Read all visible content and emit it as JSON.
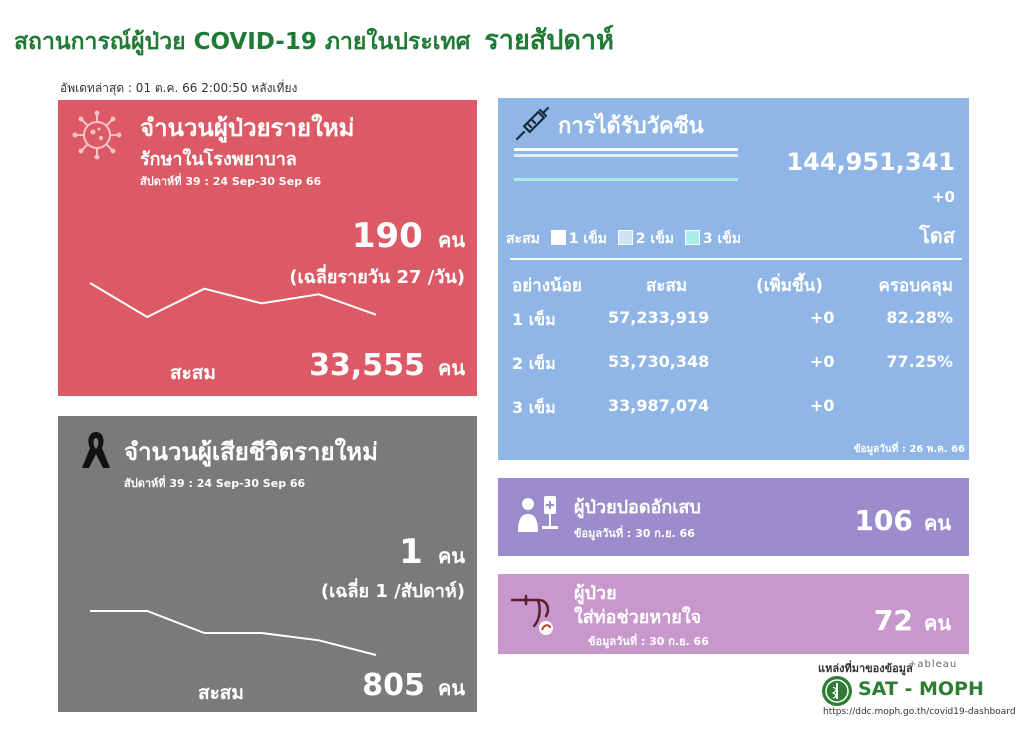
{
  "header": {
    "title": "สถานการณ์ผู้ป่วย COVID-19 ภายในประเทศ",
    "title_emphasis": "รายสัปดาห์",
    "updated": "อัพเดทล่าสุด : 01 ต.ค. 66 2:00:50 หลังเที่ยง"
  },
  "new_cases": {
    "title": "จำนวนผู้ป่วยรายใหม่",
    "subtitle": "รักษาในโรงพยาบาล",
    "week": "สัปดาห์ที่ 39 : 24 Sep-30 Sep 66",
    "value": "190",
    "unit": "คน",
    "avg": "(เฉลี่ยรายวัน 27 /วัน)",
    "cumulative_label": "สะสม",
    "cumulative_value": "33,555",
    "cumulative_unit": "คน",
    "trend": [
      5,
      2,
      4.5,
      3.2,
      4,
      2.2
    ],
    "line_color": "#ffffff"
  },
  "deaths": {
    "title": "จำนวนผู้เสียชีวิตรายใหม่",
    "week": "สัปดาห์ที่ 39 : 24 Sep-30 Sep 66",
    "value": "1",
    "unit": "คน",
    "avg": "(เฉลี่ย 1 /สัปดาห์)",
    "cumulative_label": "สะสม",
    "cumulative_value": "805",
    "cumulative_unit": "คน",
    "trend": [
      6,
      6,
      3,
      3,
      2,
      0
    ]
  },
  "vaccine": {
    "title": "การได้รับวัคซีน",
    "total": "144,951,341",
    "increase": "+0",
    "unit": "โดส",
    "legend_prefix": "สะสม",
    "legend": [
      "1 เข็ม",
      "2 เข็ม",
      "3 เข็ม"
    ],
    "legend_colors": [
      "#ffffff",
      "#cfe3f7",
      "#a8ede8"
    ],
    "columns": [
      "อย่างน้อย",
      "สะสม",
      "(เพิ่มขึ้น)",
      "ครอบคลุม"
    ],
    "rows": [
      {
        "dose": "1 เข็ม",
        "cumulative": "57,233,919",
        "increase": "+0",
        "coverage": "82.28%"
      },
      {
        "dose": "2 เข็ม",
        "cumulative": "53,730,348",
        "increase": "+0",
        "coverage": "77.25%"
      },
      {
        "dose": "3 เข็ม",
        "cumulative": "33,987,074",
        "increase": "+0",
        "coverage": ""
      }
    ],
    "data_date": "ข้อมูลวันที่ : 26 พ.ค. 66"
  },
  "pneumonia": {
    "title": "ผู้ป่วยปอดอักเสบ",
    "date": "ข้อมูลวันที่ : 30 ก.ย. 66",
    "value": "106",
    "unit": "คน"
  },
  "ventilator": {
    "title_line1": "ผู้ป่วย",
    "title_line2": "ใส่ท่อช่วยหายใจ",
    "date": "ข้อมูลวันที่ : 30 ก.ย. 66",
    "value": "72",
    "unit": "คน"
  },
  "source": {
    "label": "แหล่งที่มาของข้อมูล",
    "tableau": "+ableau",
    "org": "SAT - MOPH",
    "url": "https://ddc.moph.go.th/covid19-dashboard"
  }
}
